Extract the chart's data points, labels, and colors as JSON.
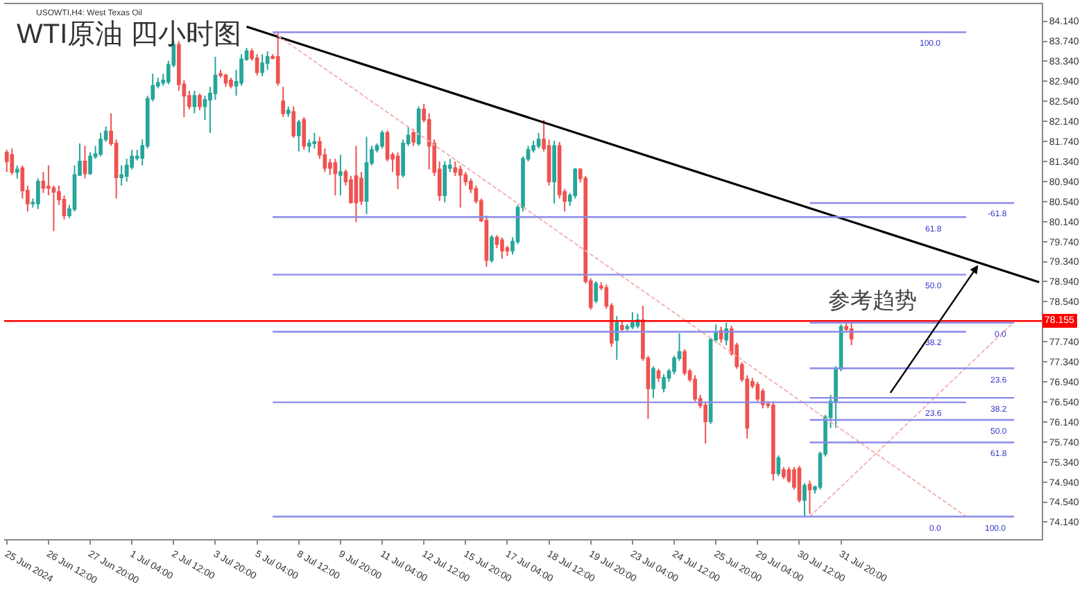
{
  "chart_data": {
    "type": "candlestick",
    "title": "WTI原油 四小时图",
    "annotations": [
      "USOWTI,H4: West Texas Oil",
      "参考趋势",
      {
        "text": "100.0",
        "y": 83.92
      },
      {
        "text": "61.8",
        "y": 80.23
      },
      {
        "text": "50.0",
        "y": 79.08
      },
      {
        "text": "38.2",
        "y": 77.94
      },
      {
        "text": "23.6",
        "y": 76.53
      },
      {
        "text": "0.0",
        "y": 74.25
      },
      {
        "text": "-61.8",
        "y": 80.51
      },
      {
        "text": "0.0",
        "y": 78.12
      },
      {
        "text": "23.6",
        "y": 77.21
      },
      {
        "text": "38.2",
        "y": 76.62
      },
      {
        "text": "50.0",
        "y": 76.18
      },
      {
        "text": "61.8",
        "y": 75.73
      },
      {
        "text": "100.0",
        "y": 74.25
      }
    ],
    "ylim": [
      73.8,
      84.48
    ],
    "yticks": [
      {
        "value": 84.14,
        "label": "84.140"
      },
      {
        "value": 83.74,
        "label": "83.740"
      },
      {
        "value": 83.34,
        "label": "83.340"
      },
      {
        "value": 82.94,
        "label": "82.940"
      },
      {
        "value": 82.54,
        "label": "82.540"
      },
      {
        "value": 82.14,
        "label": "82.140"
      },
      {
        "value": 81.74,
        "label": "81.740"
      },
      {
        "value": 81.34,
        "label": "81.340"
      },
      {
        "value": 80.94,
        "label": "80.940"
      },
      {
        "value": 80.54,
        "label": "80.540"
      },
      {
        "value": 80.14,
        "label": "80.140"
      },
      {
        "value": 79.74,
        "label": "79.740"
      },
      {
        "value": 79.34,
        "label": "79.340"
      },
      {
        "value": 78.94,
        "label": "78.940"
      },
      {
        "value": 78.54,
        "label": "78.540"
      },
      {
        "value": 77.74,
        "label": "77.740"
      },
      {
        "value": 77.34,
        "label": "77.340"
      },
      {
        "value": 76.94,
        "label": "76.940"
      },
      {
        "value": 76.54,
        "label": "76.540"
      },
      {
        "value": 76.14,
        "label": "76.140"
      },
      {
        "value": 75.74,
        "label": "75.740"
      },
      {
        "value": 75.34,
        "label": "75.340"
      },
      {
        "value": 74.94,
        "label": "74.940"
      },
      {
        "value": 74.54,
        "label": "74.540"
      },
      {
        "value": 74.14,
        "label": "74.140"
      }
    ],
    "ref_lines": [
      {
        "axis": "y",
        "value": 78.155,
        "label": "78.155",
        "color": "#ff0000"
      },
      {
        "axis": "y",
        "value": 83.92,
        "color": "#8a8ae8"
      },
      {
        "axis": "y",
        "value": 80.23,
        "color": "#8a8ae8"
      },
      {
        "axis": "y",
        "value": 79.08,
        "color": "#8a8ae8"
      },
      {
        "axis": "y",
        "value": 77.94,
        "color": "#8a8ae8"
      },
      {
        "axis": "y",
        "value": 76.53,
        "color": "#8a8ae8"
      },
      {
        "axis": "y",
        "value": 74.25,
        "color": "#8a8ae8"
      },
      {
        "axis": "y",
        "value": 80.51,
        "color": "#8a8ae8"
      },
      {
        "axis": "y",
        "value": 78.12,
        "color": "#8a8ae8"
      },
      {
        "axis": "y",
        "value": 77.21,
        "color": "#8a8ae8"
      },
      {
        "axis": "y",
        "value": 76.62,
        "color": "#8a8ae8"
      },
      {
        "axis": "y",
        "value": 76.18,
        "color": "#8a8ae8"
      },
      {
        "axis": "y",
        "value": 75.73,
        "color": "#8a8ae8"
      }
    ],
    "categories": [
      "25 Jun 2024",
      null,
      null,
      null,
      null,
      null,
      null,
      null,
      "26 Jun 12:00",
      null,
      null,
      null,
      null,
      null,
      null,
      null,
      "27 Jun 20:00",
      null,
      null,
      null,
      null,
      null,
      null,
      null,
      "1 Jul 04:00",
      null,
      null,
      null,
      null,
      null,
      null,
      null,
      "2 Jul 12:00",
      null,
      null,
      null,
      null,
      null,
      null,
      null,
      "3 Jul 20:00",
      null,
      null,
      null,
      null,
      null,
      null,
      null,
      "5 Jul 04:00",
      null,
      null,
      null,
      null,
      null,
      null,
      null,
      "8 Jul 12:00",
      null,
      null,
      null,
      null,
      null,
      null,
      null,
      "9 Jul 20:00",
      null,
      null,
      null,
      null,
      null,
      null,
      null,
      "11 Jul 04:00",
      null,
      null,
      null,
      null,
      null,
      null,
      null,
      "12 Jul 12:00",
      null,
      null,
      null,
      null,
      null,
      null,
      null,
      "15 Jul 20:00",
      null,
      null,
      null,
      null,
      null,
      null,
      null,
      "17 Jul 04:00",
      null,
      null,
      null,
      null,
      null,
      null,
      null,
      "18 Jul 12:00",
      null,
      null,
      null,
      null,
      null,
      null,
      null,
      "19 Jul 20:00",
      null,
      null,
      null,
      null,
      null,
      null,
      null,
      "23 Jul 04:00",
      null,
      null,
      null,
      null,
      null,
      null,
      null,
      "24 Jul 12:00",
      null,
      null,
      null,
      null,
      null,
      null,
      null,
      "25 Jul 20:00",
      null,
      null,
      null,
      null,
      null,
      null,
      null,
      "29 Jul 04:00",
      null,
      null,
      null,
      null,
      null,
      null,
      null,
      "30 Jul 12:00",
      null,
      null,
      null,
      null,
      null,
      null,
      null,
      "31 Jul 20:00",
      null,
      null,
      null,
      null,
      null,
      null,
      null,
      null,
      null,
      null,
      null,
      null,
      null,
      null,
      null,
      null,
      null,
      null,
      null,
      null,
      null,
      null,
      null,
      null,
      null,
      null,
      null,
      null,
      null,
      null,
      null,
      null,
      null,
      null,
      null,
      null,
      null,
      null
    ],
    "series": [
      {
        "type": "line",
        "color": "#000000",
        "values": [
          null,
          null,
          null,
          null,
          null,
          null,
          null,
          null,
          null,
          null,
          null,
          null,
          null,
          null,
          null,
          null,
          null,
          null,
          null,
          null,
          null,
          null,
          null,
          null,
          null,
          null,
          null,
          null,
          null,
          null,
          null,
          null,
          null,
          null,
          null,
          null,
          null,
          null,
          null,
          null,
          null,
          null,
          null,
          null,
          null,
          null,
          84.03,
          null,
          null,
          null,
          null,
          null,
          null,
          null,
          null,
          null,
          null,
          null,
          null,
          null,
          null,
          null,
          null,
          null,
          null,
          null,
          null,
          null,
          null,
          null,
          null,
          null,
          null,
          null,
          null,
          null,
          null,
          null,
          null,
          null,
          null,
          null,
          null,
          null,
          null,
          null,
          null,
          null,
          null,
          null,
          null,
          null,
          null,
          null,
          null,
          null,
          null,
          null,
          null,
          null,
          null,
          null,
          null,
          null,
          null,
          null,
          null,
          null,
          null,
          null,
          null,
          null,
          null,
          null,
          null,
          null,
          null,
          null,
          null,
          null,
          null,
          null,
          null,
          null,
          null,
          null,
          null,
          null,
          null,
          null,
          null,
          null,
          null,
          null,
          null,
          null,
          null,
          null,
          null,
          null,
          null,
          null,
          null,
          null,
          null,
          null,
          null,
          null,
          null,
          null,
          null,
          null,
          null,
          null,
          null,
          null,
          null,
          null,
          null,
          null,
          null,
          null,
          null,
          null,
          null,
          null,
          null,
          null,
          null,
          null,
          null,
          null,
          null,
          null,
          null,
          null,
          null,
          null,
          null,
          null,
          null,
          null,
          null,
          null,
          null,
          null,
          null,
          null,
          null,
          null,
          null,
          null,
          null,
          null,
          null,
          null,
          null,
          null,
          78.93
        ]
      },
      {
        "type": "line",
        "color": "#f4b4b4",
        "line_style": "dashed",
        "values": [
          null,
          null,
          null,
          null,
          null,
          null,
          null,
          null,
          null,
          null,
          null,
          null,
          null,
          null,
          null,
          null,
          null,
          null,
          null,
          null,
          null,
          null,
          null,
          null,
          null,
          null,
          null,
          null,
          null,
          null,
          null,
          null,
          null,
          null,
          null,
          null,
          null,
          null,
          null,
          null,
          null,
          null,
          null,
          null,
          null,
          null,
          null,
          null,
          null,
          null,
          null,
          83.92,
          null,
          null,
          null,
          null,
          null,
          null,
          null,
          null,
          null,
          null,
          null,
          null,
          null,
          null,
          null,
          null,
          null,
          null,
          null,
          null,
          null,
          null,
          null,
          null,
          null,
          null,
          null,
          null,
          null,
          null,
          null,
          null,
          null,
          null,
          null,
          null,
          null,
          null,
          null,
          null,
          null,
          null,
          null,
          null,
          null,
          null,
          null,
          null,
          null,
          null,
          null,
          null,
          null,
          null,
          null,
          null,
          null,
          null,
          null,
          null,
          null,
          null,
          null,
          null,
          null,
          null,
          null,
          null,
          null,
          null,
          null,
          null,
          null,
          null,
          null,
          null,
          null,
          null,
          null,
          null,
          null,
          null,
          null,
          null,
          null,
          null,
          null,
          null,
          null,
          null,
          null,
          null,
          null,
          null,
          null,
          null,
          null,
          null,
          null,
          null,
          null,
          null,
          null,
          null,
          null,
          null,
          null,
          null,
          null,
          null,
          null,
          null,
          null,
          null,
          null,
          null,
          null,
          null,
          null,
          null,
          null,
          null,
          null,
          null,
          null,
          null,
          null,
          null,
          null,
          null,
          null,
          null,
          74.25,
          null,
          null,
          null,
          null,
          null,
          null,
          null,
          null,
          null,
          null,
          null,
          null,
          null,
          null
        ]
      },
      {
        "type": "line",
        "color": "#f4b4b4",
        "line_style": "dashed",
        "values": [
          null,
          null,
          null,
          null,
          null,
          null,
          null,
          null,
          null,
          null,
          null,
          null,
          null,
          null,
          null,
          null,
          null,
          null,
          null,
          null,
          null,
          null,
          null,
          null,
          null,
          null,
          null,
          null,
          null,
          null,
          null,
          null,
          null,
          null,
          null,
          null,
          null,
          null,
          null,
          null,
          null,
          null,
          null,
          null,
          null,
          null,
          null,
          null,
          null,
          null,
          null,
          null,
          null,
          null,
          null,
          null,
          null,
          null,
          null,
          null,
          null,
          null,
          null,
          null,
          null,
          null,
          null,
          null,
          null,
          null,
          null,
          null,
          null,
          null,
          null,
          null,
          null,
          null,
          null,
          null,
          null,
          null,
          null,
          null,
          null,
          null,
          null,
          null,
          null,
          null,
          null,
          null,
          null,
          null,
          null,
          null,
          null,
          null,
          null,
          null,
          null,
          null,
          null,
          null,
          null,
          null,
          null,
          null,
          null,
          null,
          null,
          null,
          null,
          null,
          null,
          null,
          null,
          null,
          null,
          null,
          null,
          null,
          null,
          null,
          null,
          null,
          null,
          null,
          null,
          null,
          null,
          null,
          null,
          null,
          null,
          null,
          null,
          null,
          null,
          null,
          null,
          null,
          null,
          null,
          null,
          null,
          null,
          null,
          null,
          null,
          null,
          null,
          null,
          null,
          74.25,
          null,
          null,
          null,
          null,
          null,
          null,
          null,
          null,
          null,
          null,
          null,
          null,
          null,
          null,
          null,
          null,
          null,
          null,
          null,
          null,
          null,
          null,
          null,
          null,
          null,
          null,
          null,
          null,
          null,
          null,
          null,
          null,
          null,
          null,
          null,
          null,
          null,
          null,
          78.12,
          null,
          null,
          null,
          null,
          null
        ]
      }
    ],
    "colors": [
      "#ef5350",
      "#ef5350",
      "#26a69a",
      "#ef5350",
      "#ef5350",
      "#26a69a",
      "#26a69a",
      "#ef5350",
      "#ef5350",
      "#ef5350",
      "#ef5350",
      "#ef5350",
      "#26a69a",
      "#26a69a",
      "#26a69a",
      "#ef5350",
      "#26a69a",
      "#26a69a",
      "#26a69a",
      "#26a69a",
      "#ef5350",
      "#ef5350",
      "#26a69a",
      "#26a69a",
      "#26a69a",
      "#26a69a",
      "#26a69a",
      "#26a69a",
      "#26a69a",
      "#26a69a",
      "#26a69a",
      "#26a69a",
      "#26a69a",
      "#ef5350",
      "#ef5350",
      "#ef5350",
      "#26a69a",
      "#ef5350",
      "#26a69a",
      "#26a69a",
      "#26a69a",
      "#ef5350",
      "#ef5350",
      "#ef5350",
      "#26a69a",
      "#26a69a",
      "#26a69a",
      "#ef5350",
      "#ef5350",
      "#26a69a",
      "#26a69a",
      "#ef5350",
      "#ef5350",
      "#ef5350",
      "#26a69a",
      "#ef5350",
      "#26a69a",
      "#ef5350",
      "#26a69a",
      "#26a69a",
      "#ef5350",
      "#ef5350",
      "#ef5350",
      "#ef5350",
      "#26a69a",
      "#ef5350",
      "#ef5350",
      "#ef5350",
      "#ef5350",
      "#26a69a",
      "#26a69a",
      "#26a69a",
      "#26a69a",
      "#ef5350",
      "#ef5350",
      "#ef5350",
      "#26a69a",
      "#26a69a",
      "#ef5350",
      "#26a69a",
      "#ef5350",
      "#ef5350",
      "#ef5350",
      "#ef5350",
      "#26a69a",
      "#26a69a",
      "#ef5350",
      "#ef5350",
      "#ef5350",
      "#ef5350",
      "#ef5350",
      "#ef5350",
      "#ef5350",
      "#26a69a",
      "#ef5350",
      "#ef5350",
      "#ef5350",
      "#26a69a",
      "#26a69a",
      "#26a69a",
      "#26a69a",
      "#26a69a",
      "#26a69a",
      "#ef5350",
      "#ef5350",
      "#26a69a",
      "#ef5350",
      "#ef5350",
      "#26a69a",
      "#26a69a",
      "#ef5350",
      "#ef5350",
      "#ef5350",
      "#26a69a",
      "#ef5350",
      "#ef5350",
      "#ef5350",
      "#26a69a",
      "#ef5350",
      "#26a69a",
      "#26a69a",
      "#26a69a",
      "#ef5350",
      "#ef5350",
      "#26a69a",
      "#ef5350",
      "#26a69a",
      "#26a69a",
      "#26a69a",
      "#26a69a",
      "#ef5350",
      "#ef5350",
      "#ef5350",
      "#ef5350",
      "#ef5350",
      "#26a69a",
      "#26a69a",
      "#ef5350",
      "#26a69a",
      "#ef5350",
      "#ef5350",
      "#ef5350",
      "#ef5350",
      "#ef5350",
      "#ef5350",
      "#ef5350",
      "#ef5350",
      "#ef5350",
      "#26a69a",
      "#ef5350",
      "#ef5350",
      "#ef5350",
      "#ef5350",
      "#26a69a",
      "#ef5350",
      "#26a69a",
      "#26a69a",
      "#26a69a",
      "#26a69a",
      "#26a69a",
      "#26a69a",
      "#ef5350",
      "#ef5350",
      null,
      null,
      null,
      null,
      null,
      null,
      null,
      null,
      null,
      null,
      null,
      null,
      null,
      null,
      null,
      null,
      null,
      null,
      null,
      null,
      null,
      null,
      null,
      null,
      null,
      null,
      null,
      null,
      null,
      null,
      null,
      null,
      null,
      null,
      null,
      null
    ],
    "ohlc": [
      [
        81.52,
        81.57,
        81.13,
        81.34
      ],
      [
        81.47,
        81.6,
        81.07,
        81.13
      ],
      [
        81.13,
        81.26,
        81.0,
        81.18
      ],
      [
        81.21,
        81.26,
        80.6,
        80.76
      ],
      [
        80.76,
        80.86,
        80.34,
        80.5
      ],
      [
        80.5,
        80.6,
        80.42,
        80.52
      ],
      [
        80.5,
        81.0,
        80.39,
        80.94
      ],
      [
        80.94,
        81.13,
        80.71,
        80.81
      ],
      [
        80.84,
        81.26,
        80.66,
        80.81
      ],
      [
        80.81,
        80.86,
        79.95,
        80.73
      ],
      [
        80.73,
        80.86,
        80.47,
        80.58
      ],
      [
        80.58,
        80.66,
        80.18,
        80.26
      ],
      [
        80.26,
        80.47,
        80.21,
        80.39
      ],
      [
        80.39,
        81.26,
        80.34,
        81.07
      ],
      [
        81.07,
        81.7,
        81.05,
        81.34
      ],
      [
        81.34,
        81.65,
        81.0,
        81.1
      ],
      [
        81.1,
        81.52,
        81.07,
        81.44
      ],
      [
        81.44,
        81.65,
        81.39,
        81.49
      ],
      [
        81.49,
        81.91,
        81.44,
        81.78
      ],
      [
        81.78,
        82.04,
        81.73,
        81.94
      ],
      [
        81.94,
        82.3,
        81.65,
        81.7
      ],
      [
        81.7,
        81.78,
        80.6,
        81.02
      ],
      [
        81.02,
        81.26,
        80.86,
        81.07
      ],
      [
        81.05,
        81.39,
        80.94,
        81.26
      ],
      [
        81.23,
        81.57,
        81.18,
        81.44
      ],
      [
        81.41,
        81.57,
        81.36,
        81.44
      ],
      [
        81.41,
        81.78,
        81.26,
        81.65
      ],
      [
        81.65,
        82.65,
        81.6,
        82.59
      ],
      [
        82.59,
        83.09,
        82.54,
        82.85
      ],
      [
        82.85,
        83.01,
        82.8,
        82.91
      ],
      [
        82.91,
        83.09,
        82.85,
        82.96
      ],
      [
        82.93,
        83.35,
        82.88,
        83.27
      ],
      [
        83.27,
        83.74,
        83.22,
        83.67
      ],
      [
        83.67,
        83.74,
        82.75,
        82.88
      ],
      [
        82.88,
        82.96,
        82.23,
        82.65
      ],
      [
        82.65,
        82.75,
        82.38,
        82.44
      ],
      [
        82.44,
        82.75,
        82.3,
        82.65
      ],
      [
        82.65,
        82.7,
        82.36,
        82.44
      ],
      [
        82.44,
        82.65,
        82.17,
        82.57
      ],
      [
        82.57,
        82.83,
        81.91,
        82.7
      ],
      [
        82.7,
        83.43,
        82.57,
        83.06
      ],
      [
        83.09,
        83.17,
        83.01,
        83.06
      ],
      [
        83.06,
        83.09,
        82.83,
        82.91
      ],
      [
        82.96,
        83.01,
        82.8,
        82.85
      ],
      [
        82.85,
        83.17,
        82.65,
        82.93
      ],
      [
        82.91,
        83.48,
        82.85,
        83.38
      ],
      [
        83.38,
        83.61,
        83.35,
        83.54
      ],
      [
        83.54,
        83.59,
        83.35,
        83.4
      ],
      [
        83.4,
        83.48,
        83.06,
        83.12
      ],
      [
        83.12,
        83.48,
        83.04,
        83.3
      ],
      [
        83.3,
        83.54,
        83.17,
        83.43
      ],
      [
        83.43,
        83.48,
        83.38,
        83.4
      ],
      [
        83.43,
        83.92,
        82.85,
        82.91
      ],
      [
        82.54,
        82.83,
        82.23,
        82.3
      ],
      [
        82.3,
        82.44,
        82.23,
        82.36
      ],
      [
        82.33,
        82.44,
        81.81,
        81.86
      ],
      [
        81.86,
        82.17,
        81.54,
        82.12
      ],
      [
        82.17,
        82.23,
        81.57,
        81.65
      ],
      [
        81.65,
        81.78,
        81.52,
        81.7
      ],
      [
        81.7,
        81.91,
        81.6,
        81.73
      ],
      [
        81.73,
        81.83,
        81.39,
        81.47
      ],
      [
        81.47,
        81.6,
        81.13,
        81.21
      ],
      [
        81.31,
        81.39,
        81.07,
        81.21
      ],
      [
        81.31,
        81.39,
        80.66,
        81.1
      ],
      [
        81.07,
        81.47,
        80.66,
        81.13
      ],
      [
        81.13,
        81.18,
        80.86,
        80.94
      ],
      [
        80.97,
        81.05,
        80.5,
        80.52
      ],
      [
        81.05,
        81.65,
        80.13,
        80.52
      ],
      [
        81.0,
        81.13,
        80.47,
        80.55
      ],
      [
        80.55,
        81.83,
        80.29,
        81.31
      ],
      [
        81.31,
        81.65,
        81.26,
        81.57
      ],
      [
        81.57,
        81.7,
        81.52,
        81.65
      ],
      [
        81.65,
        81.96,
        81.6,
        81.91
      ],
      [
        81.91,
        81.96,
        81.34,
        81.39
      ],
      [
        81.47,
        81.52,
        81.13,
        81.39
      ],
      [
        81.44,
        81.52,
        80.79,
        81.07
      ],
      [
        81.07,
        81.78,
        81.02,
        81.7
      ],
      [
        81.7,
        82.04,
        81.65,
        81.86
      ],
      [
        81.91,
        81.99,
        81.65,
        81.73
      ],
      [
        81.7,
        82.44,
        81.65,
        82.38
      ],
      [
        82.38,
        82.49,
        82.12,
        82.17
      ],
      [
        82.17,
        82.3,
        81.18,
        81.65
      ],
      [
        81.7,
        81.78,
        81.05,
        81.13
      ],
      [
        81.18,
        81.34,
        80.55,
        80.66
      ],
      [
        80.66,
        81.34,
        80.52,
        81.26
      ],
      [
        81.21,
        81.39,
        81.13,
        81.26
      ],
      [
        81.21,
        81.34,
        81.05,
        81.13
      ],
      [
        81.18,
        81.26,
        80.42,
        81.07
      ],
      [
        81.07,
        81.13,
        80.86,
        80.94
      ],
      [
        80.94,
        81.0,
        80.71,
        80.79
      ],
      [
        80.79,
        80.86,
        80.5,
        80.55
      ],
      [
        80.55,
        80.6,
        80.13,
        80.16
      ],
      [
        80.16,
        80.26,
        79.24,
        79.37
      ],
      [
        79.37,
        79.87,
        79.32,
        79.82
      ],
      [
        79.82,
        79.87,
        79.61,
        79.69
      ],
      [
        79.77,
        79.82,
        79.4,
        79.56
      ],
      [
        79.61,
        79.66,
        79.45,
        79.56
      ],
      [
        79.56,
        79.82,
        79.48,
        79.74
      ],
      [
        79.74,
        80.47,
        79.69,
        80.42
      ],
      [
        80.42,
        81.44,
        80.34,
        81.39
      ],
      [
        81.39,
        81.65,
        81.34,
        81.57
      ],
      [
        81.57,
        81.75,
        81.52,
        81.65
      ],
      [
        81.65,
        81.91,
        81.6,
        81.78
      ],
      [
        81.78,
        82.17,
        81.54,
        81.6
      ],
      [
        81.65,
        81.78,
        80.86,
        80.94
      ],
      [
        80.94,
        81.75,
        80.5,
        81.65
      ],
      [
        81.65,
        81.73,
        80.6,
        80.68
      ],
      [
        80.73,
        80.79,
        80.34,
        80.55
      ],
      [
        80.55,
        80.71,
        80.45,
        80.66
      ],
      [
        80.66,
        81.21,
        80.6,
        81.18
      ],
      [
        81.18,
        81.21,
        80.92,
        81.0
      ],
      [
        81.0,
        81.05,
        78.9,
        78.95
      ],
      [
        78.95,
        79.01,
        78.38,
        78.43
      ],
      [
        78.56,
        78.95,
        78.51,
        78.9
      ],
      [
        78.85,
        78.93,
        78.77,
        78.82
      ],
      [
        78.82,
        78.88,
        78.4,
        78.46
      ],
      [
        78.46,
        78.51,
        77.64,
        77.72
      ],
      [
        77.77,
        78.25,
        77.38,
        78.12
      ],
      [
        78.06,
        78.17,
        77.93,
        77.99
      ],
      [
        78.01,
        78.09,
        77.96,
        78.04
      ],
      [
        78.04,
        78.33,
        77.99,
        78.12
      ],
      [
        78.06,
        78.3,
        78.01,
        78.17
      ],
      [
        78.17,
        78.46,
        77.36,
        77.41
      ],
      [
        77.41,
        77.46,
        76.2,
        76.81
      ],
      [
        76.81,
        77.25,
        76.62,
        77.2
      ],
      [
        77.15,
        77.2,
        76.94,
        77.02
      ],
      [
        76.81,
        77.09,
        76.73,
        77.02
      ],
      [
        77.02,
        77.2,
        76.94,
        77.15
      ],
      [
        77.15,
        77.46,
        77.09,
        77.41
      ],
      [
        77.41,
        77.91,
        77.36,
        77.54
      ],
      [
        77.54,
        77.59,
        77.07,
        77.12
      ],
      [
        77.15,
        77.2,
        76.94,
        76.99
      ],
      [
        76.99,
        77.07,
        76.55,
        76.6
      ],
      [
        76.6,
        76.68,
        76.41,
        76.47
      ],
      [
        76.47,
        76.55,
        75.71,
        76.15
      ],
      [
        76.15,
        77.83,
        76.1,
        77.78
      ],
      [
        77.78,
        78.09,
        77.72,
        77.93
      ],
      [
        77.96,
        78.04,
        77.72,
        77.8
      ],
      [
        77.78,
        78.12,
        77.67,
        77.99
      ],
      [
        77.99,
        78.06,
        77.46,
        77.51
      ],
      [
        77.67,
        77.72,
        77.2,
        77.25
      ],
      [
        77.28,
        77.33,
        76.94,
        76.99
      ],
      [
        76.99,
        77.07,
        75.81,
        76.02
      ],
      [
        76.94,
        77.02,
        76.81,
        76.86
      ],
      [
        76.88,
        76.94,
        76.55,
        76.6
      ],
      [
        76.75,
        76.81,
        76.41,
        76.49
      ],
      [
        76.49,
        76.55,
        76.41,
        76.47
      ],
      [
        76.47,
        76.55,
        74.97,
        75.11
      ],
      [
        75.11,
        75.47,
        75.06,
        75.42
      ],
      [
        75.18,
        75.24,
        75.0,
        75.05
      ],
      [
        75.18,
        75.24,
        74.92,
        74.97
      ],
      [
        75.18,
        75.24,
        74.79,
        74.84
      ],
      [
        75.21,
        75.26,
        74.53,
        74.58
      ],
      [
        74.58,
        74.92,
        74.25,
        74.87
      ],
      [
        74.89,
        74.97,
        74.3,
        74.79
      ],
      [
        74.79,
        74.87,
        74.71,
        74.84
      ],
      [
        74.84,
        75.55,
        74.79,
        75.5
      ],
      [
        75.5,
        76.28,
        75.45,
        76.23
      ],
      [
        76.23,
        76.68,
        76.02,
        76.55
      ],
      [
        76.55,
        77.25,
        76.02,
        77.2
      ],
      [
        77.2,
        78.09,
        77.15,
        78.04
      ],
      [
        78.04,
        78.12,
        77.93,
        77.99
      ],
      [
        77.99,
        78.12,
        77.67,
        77.8
      ],
      null,
      null,
      null,
      null,
      null,
      null,
      null,
      null,
      null,
      null,
      null,
      null,
      null,
      null,
      null,
      null,
      null,
      null,
      null,
      null,
      null,
      null,
      null,
      null,
      null,
      null,
      null,
      null,
      null,
      null,
      null,
      null,
      null,
      null,
      null,
      null
    ]
  }
}
